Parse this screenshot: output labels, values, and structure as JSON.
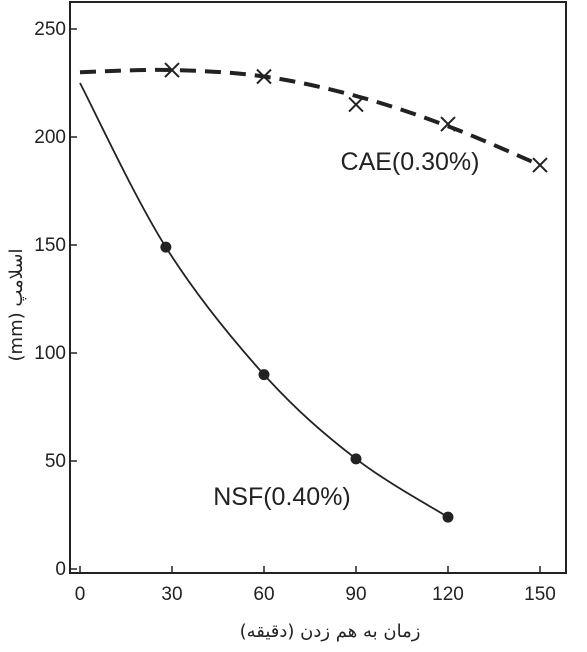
{
  "chart_data": {
    "type": "line",
    "title": "",
    "xlabel": "زمان به هم زدن (دقیقه)",
    "ylabel": "اسلامپ (mm)",
    "xlim": [
      0,
      155
    ],
    "ylim": [
      0,
      250
    ],
    "xticks": [
      "0",
      "30",
      "60",
      "90",
      "120",
      "150"
    ],
    "yticks": [
      "0",
      "50",
      "100",
      "150",
      "200",
      "250"
    ],
    "grid": false,
    "series": [
      {
        "name": "CAE(0.30%)",
        "line": "dashed",
        "marker": "x",
        "x": [
          30,
          60,
          90,
          120,
          150
        ],
        "y": [
          231,
          228,
          215,
          206,
          187
        ],
        "curve_x": [
          0,
          30,
          60,
          90,
          120,
          150
        ],
        "curve_y": [
          230,
          231,
          228,
          219,
          205,
          187
        ]
      },
      {
        "name": "NSF(0.40%)",
        "line": "solid",
        "marker": "circle",
        "x": [
          28,
          60,
          90,
          120
        ],
        "y": [
          149,
          90,
          51,
          24
        ],
        "curve_x": [
          0,
          28,
          60,
          90,
          120
        ],
        "curve_y": [
          225,
          149,
          90,
          51,
          24
        ]
      }
    ]
  }
}
